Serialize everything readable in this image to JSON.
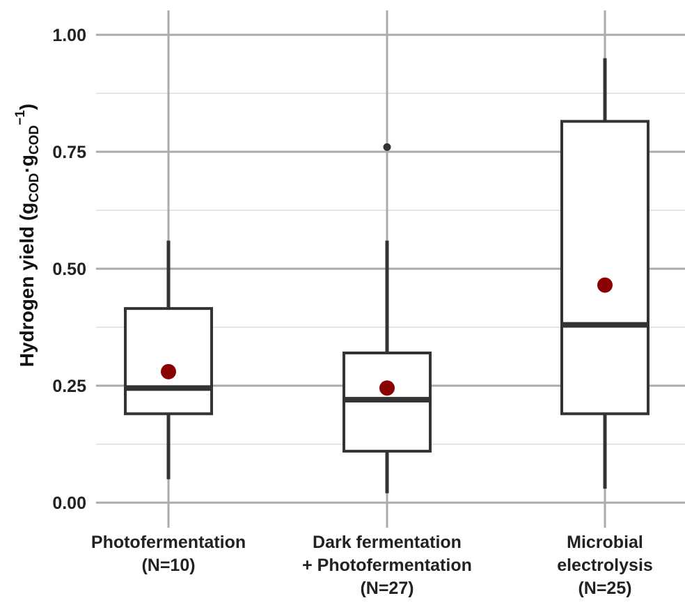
{
  "chart_data": {
    "type": "box",
    "title": "",
    "xlabel": "",
    "ylabel": {
      "main": "Hydrogen yield (g",
      "sub1": "COD",
      "dot": "·g",
      "sub2": "COD",
      "sup": "−1",
      "close": ")"
    },
    "ylim": [
      0,
      1.0
    ],
    "yticks": [
      0.0,
      0.25,
      0.5,
      0.75,
      1.0
    ],
    "ytick_labels": [
      "0.00",
      "0.25",
      "0.50",
      "0.75",
      "1.00"
    ],
    "grid": true,
    "legend": "none",
    "categories": [
      {
        "name": "Photofermentation",
        "lines": [
          "Photofermentation",
          "(N=10)"
        ]
      },
      {
        "name": "Dark fermentation + Photofermentation",
        "lines": [
          "Dark fermentation",
          "+ Photofermentation",
          "(N=27)"
        ]
      },
      {
        "name": "Microbial electrolysis",
        "lines": [
          "Microbial",
          "electrolysis",
          "(N=25)"
        ]
      }
    ],
    "boxes": [
      {
        "whisker_low": 0.05,
        "q1": 0.19,
        "median": 0.245,
        "q3": 0.415,
        "whisker_high": 0.56,
        "mean": 0.28,
        "outliers": []
      },
      {
        "whisker_low": 0.02,
        "q1": 0.11,
        "median": 0.22,
        "q3": 0.32,
        "whisker_high": 0.56,
        "mean": 0.245,
        "outliers": [
          0.76
        ]
      },
      {
        "whisker_low": 0.03,
        "q1": 0.19,
        "median": 0.38,
        "q3": 0.815,
        "whisker_high": 0.95,
        "mean": 0.465,
        "outliers": []
      }
    ],
    "colors": {
      "box_stroke": "#333333",
      "mean_marker": "#8b0000",
      "outlier": "#333333",
      "major_grid": "#aaaaaa",
      "minor_grid": "#e6e6e6"
    }
  }
}
